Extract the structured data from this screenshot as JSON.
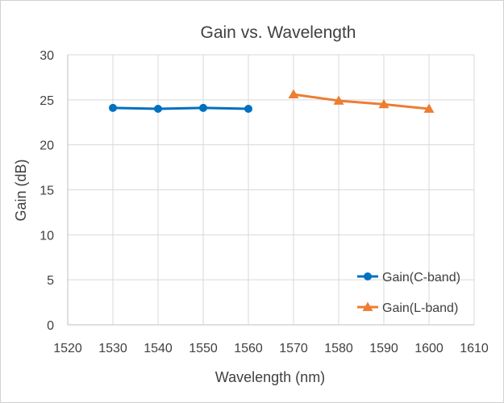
{
  "chart_data": {
    "type": "line",
    "title": "Gain vs. Wavelength",
    "xlabel": "Wavelength (nm)",
    "ylabel": "Gain (dB)",
    "xlim": [
      1520,
      1610
    ],
    "ylim": [
      0,
      30
    ],
    "xticks": [
      1520,
      1530,
      1540,
      1550,
      1560,
      1570,
      1580,
      1590,
      1600,
      1610
    ],
    "yticks": [
      0,
      5,
      10,
      15,
      20,
      25,
      30
    ],
    "grid": true,
    "legend_position": "bottom-right",
    "series": [
      {
        "name": "Gain(C-band)",
        "color": "#0070C0",
        "marker": "circle",
        "x": [
          1530,
          1540,
          1550,
          1560
        ],
        "y": [
          24.1,
          24.0,
          24.1,
          24.0
        ]
      },
      {
        "name": "Gain(L-band)",
        "color": "#ED7D31",
        "marker": "triangle",
        "x": [
          1570,
          1580,
          1590,
          1600
        ],
        "y": [
          25.6,
          24.9,
          24.5,
          24.0
        ]
      }
    ]
  }
}
